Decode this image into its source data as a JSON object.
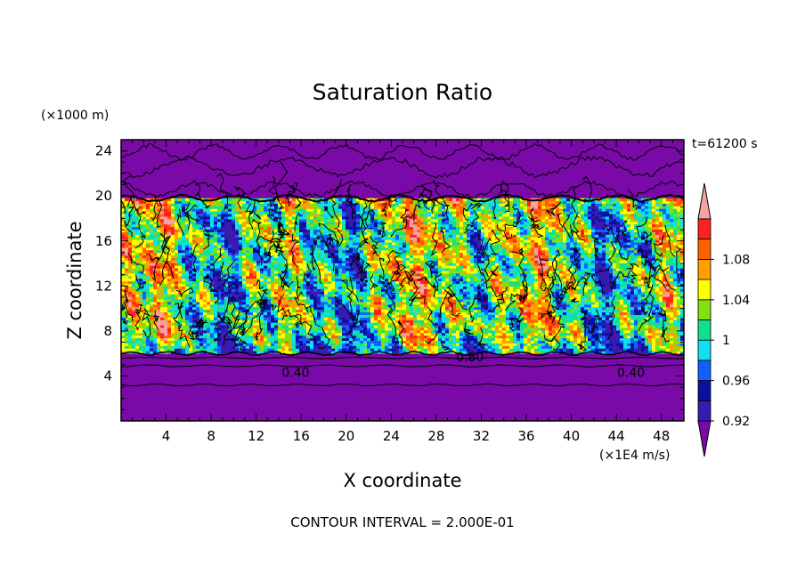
{
  "chart_data": {
    "type": "heatmap",
    "title": "Saturation Ratio",
    "xlabel": "X coordinate",
    "ylabel": "Z coordinate",
    "x_unit": "(×1E4 m/s)",
    "y_unit": "(×1000 m)",
    "time_label": "t=61200 s",
    "contour_interval_label": "CONTOUR INTERVAL = 2.000E-01",
    "xlim": [
      0,
      50
    ],
    "ylim": [
      0,
      25
    ],
    "x_ticks": [
      4,
      8,
      12,
      16,
      20,
      24,
      28,
      32,
      36,
      40,
      44,
      48
    ],
    "y_ticks": [
      4,
      8,
      12,
      16,
      20,
      24
    ],
    "contour_labels": [
      {
        "text": "0.40",
        "x": 15.5,
        "y": 4.3
      },
      {
        "text": "0.40",
        "x": 45.3,
        "y": 4.3
      },
      {
        "text": "0.80",
        "x": 31.0,
        "y": 5.7
      }
    ],
    "colorbar": {
      "levels": [
        0.92,
        0.94,
        0.96,
        0.98,
        1.0,
        1.02,
        1.04,
        1.06,
        1.08,
        1.1
      ],
      "labels": [
        "0.92",
        "0.96",
        "1",
        "1.04",
        "1.08"
      ],
      "colors": [
        "#7a0aa8",
        "#3a1ab0",
        "#0a10a0",
        "#1060ff",
        "#10e0f0",
        "#10e090",
        "#80e010",
        "#ffff00",
        "#ffa000",
        "#ff6000",
        "#ff2020",
        "#f4a4a0"
      ]
    },
    "background_color": "#7a0aa8",
    "moist_layer": [
      6.0,
      19.8
    ]
  }
}
